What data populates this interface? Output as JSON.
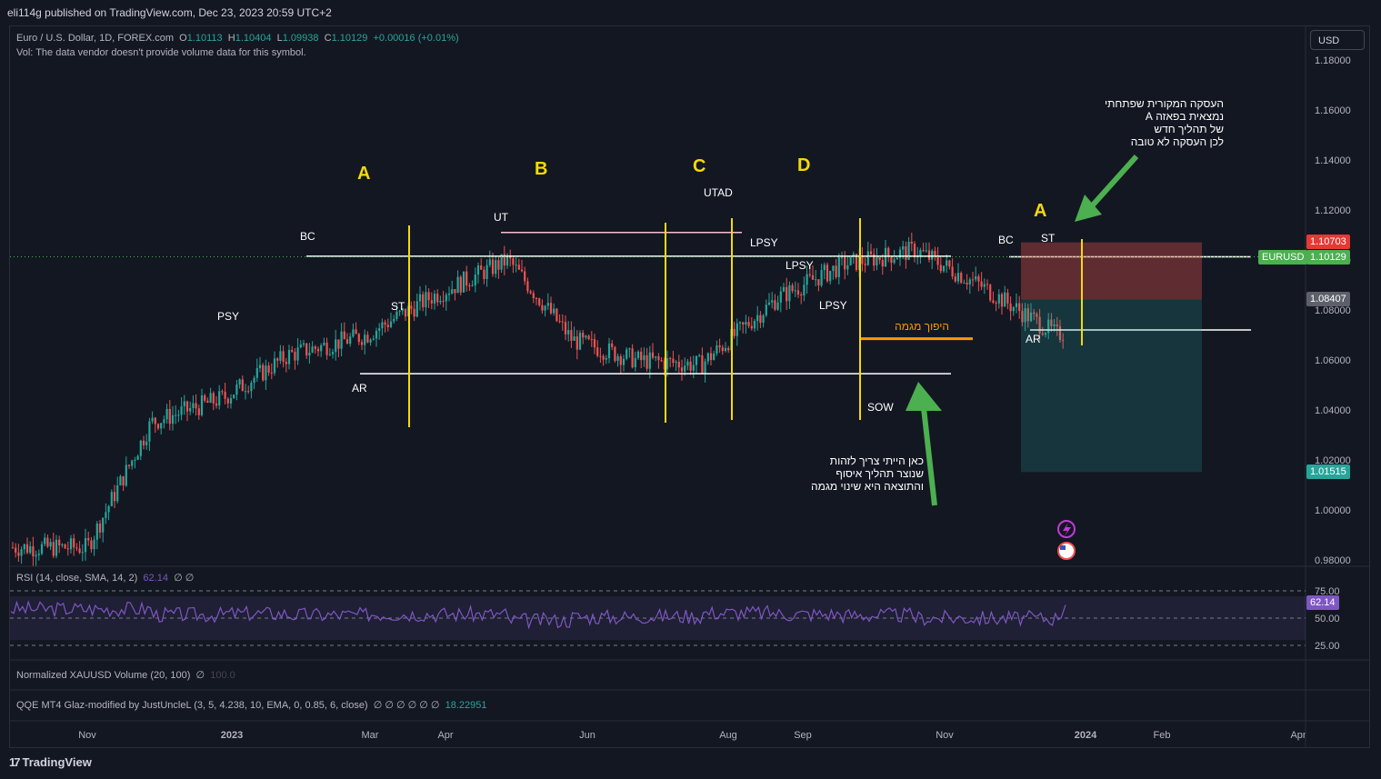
{
  "header": {
    "published": "eli114g published on TradingView.com, Dec 23, 2023 20:59 UTC+2"
  },
  "symbol": {
    "name": "Euro / U.S. Dollar, 1D, FOREX.com",
    "o_label": "O",
    "o": "1.10113",
    "h_label": "H",
    "h": "1.10404",
    "l_label": "L",
    "l": "1.09938",
    "c_label": "C",
    "c": "1.10129",
    "change": "+0.00016 (+0.01%)",
    "vol_note": "Vol: The data vendor doesn't provide volume data for this symbol."
  },
  "currency_button": "USD",
  "price_tags": {
    "current_symbol": "EURUSD",
    "current": "1.10129",
    "stop": "1.10703",
    "entry": "1.08407",
    "target": "1.01515"
  },
  "rsi": {
    "label": "RSI (14, close, SMA, 14, 2)",
    "value": "62.14",
    "extra": "∅ ∅",
    "tag": "62.14",
    "levels": [
      "75.00",
      "50.00",
      "25.00"
    ]
  },
  "indicators": {
    "xau_label": "Normalized XAUUSD Volume (20, 100)",
    "xau_value": "∅",
    "xau_dim": "100.0",
    "qqe_label": "QQE MT4 Glaz-modified by JustUncleL (3, 5, 4.238, 10, EMA, 0, 0.85, 6, close)",
    "qqe_nulls": "∅ ∅ ∅ ∅ ∅ ∅",
    "qqe_value": "18.22951"
  },
  "annotations": {
    "phase_labels": [
      "A",
      "B",
      "C",
      "D",
      "A"
    ],
    "wyckoff": [
      "BC",
      "PSY",
      "ST",
      "AR",
      "UT",
      "UTAD",
      "LPSY",
      "LPSY",
      "LPSY",
      "SOW",
      "BC",
      "ST",
      "AR"
    ],
    "orange_label": "היפוך מגמה",
    "note_top": "העסקה המקורית שפתחתי\nנמצאית בפאזה A\nשל תהליך חדש\nלכן העסקה לא טובה",
    "note_bottom": "כאן הייתי צריך לזהות\nשנוצר תהליך איסוף\nוהתוצאה היא שינוי מגמה"
  },
  "branding": "TradingView",
  "colors": {
    "bg": "#131722",
    "up": "#26a69a",
    "down": "#ef5350",
    "yellow": "#f5d90a",
    "orange": "#ff9800",
    "green_arrow": "#4caf50",
    "rsi_line": "#7e57c2"
  },
  "chart_data": {
    "type": "candlestick",
    "symbol": "EURUSD",
    "timeframe": "1D",
    "y_ticks": [
      "1.18000",
      "1.16000",
      "1.14000",
      "1.12000",
      "1.10000",
      "1.08000",
      "1.06000",
      "1.04000",
      "1.02000",
      "1.00000",
      "0.98000"
    ],
    "ylim": [
      0.973,
      1.187
    ],
    "x_ticks": [
      "Nov",
      "2023",
      "Mar",
      "Apr",
      "Jun",
      "Aug",
      "Sep",
      "Nov",
      "2024",
      "Feb",
      "Apr"
    ],
    "approx_close_path": [
      {
        "x": "2022-11-01",
        "y": 0.985
      },
      {
        "x": "2022-11-15",
        "y": 1.035
      },
      {
        "x": "2022-12-01",
        "y": 1.045
      },
      {
        "x": "2022-12-15",
        "y": 1.062
      },
      {
        "x": "2023-01-01",
        "y": 1.07
      },
      {
        "x": "2023-01-15",
        "y": 1.085
      },
      {
        "x": "2023-02-01",
        "y": 1.1
      },
      {
        "x": "2023-02-15",
        "y": 1.068
      },
      {
        "x": "2023-03-01",
        "y": 1.06
      },
      {
        "x": "2023-03-15",
        "y": 1.058
      },
      {
        "x": "2023-04-01",
        "y": 1.085
      },
      {
        "x": "2023-04-15",
        "y": 1.098
      },
      {
        "x": "2023-05-01",
        "y": 1.104
      },
      {
        "x": "2023-05-15",
        "y": 1.09
      },
      {
        "x": "2023-06-01",
        "y": 1.07
      },
      {
        "x": "2023-06-15",
        "y": 1.08
      },
      {
        "x": "2023-07-01",
        "y": 1.092
      },
      {
        "x": "2023-07-18",
        "y": 1.125
      },
      {
        "x": "2023-08-01",
        "y": 1.1
      },
      {
        "x": "2023-08-15",
        "y": 1.09
      },
      {
        "x": "2023-09-01",
        "y": 1.085
      },
      {
        "x": "2023-09-15",
        "y": 1.068
      },
      {
        "x": "2023-10-01",
        "y": 1.05
      },
      {
        "x": "2023-10-15",
        "y": 1.058
      },
      {
        "x": "2023-11-01",
        "y": 1.064
      },
      {
        "x": "2023-11-15",
        "y": 1.09
      },
      {
        "x": "2023-12-01",
        "y": 1.1
      },
      {
        "x": "2023-12-08",
        "y": 1.076
      },
      {
        "x": "2023-12-22",
        "y": 1.101
      }
    ],
    "horizontal_levels": [
      1.1015,
      1.0545,
      1.111,
      1.0685,
      1.072
    ],
    "trade": {
      "entry": 1.08407,
      "stop": 1.10703,
      "target": 1.01515
    },
    "rsi_levels": [
      75,
      50,
      25
    ],
    "rsi_last": 62.14
  }
}
